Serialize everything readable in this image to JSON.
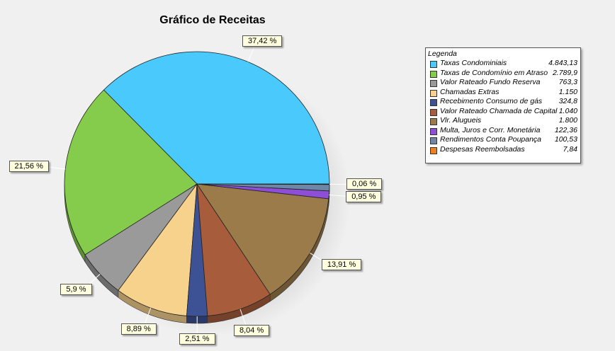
{
  "chart_data": {
    "type": "pie",
    "title": "Gráfico de Receitas",
    "legend_title": "Legenda",
    "legend_position": "right",
    "slices": [
      {
        "label": "Taxas Condominiais",
        "value_label": "4.843,13",
        "value": 4843.13,
        "percent_label": "37,42 %",
        "color": "#4ac9fd"
      },
      {
        "label": "Taxas de Condomínio em Atraso",
        "value_label": "2.789,9",
        "value": 2789.9,
        "percent_label": "21,56 %",
        "color": "#86cc4c"
      },
      {
        "label": "Valor Rateado Fundo Reserva",
        "value_label": "763,3",
        "value": 763.3,
        "percent_label": "5,9 %",
        "color": "#9a9a9a"
      },
      {
        "label": "Chamadas Extras",
        "value_label": "1.150",
        "value": 1150,
        "percent_label": "8,89 %",
        "color": "#f7d28d"
      },
      {
        "label": "Recebimento Consumo de gás",
        "value_label": "324,8",
        "value": 324.8,
        "percent_label": "2,51 %",
        "color": "#3c5294"
      },
      {
        "label": "Valor Rateado Chamada de Capital",
        "value_label": "1.040",
        "value": 1040,
        "percent_label": "8,04 %",
        "color": "#a75d3c"
      },
      {
        "label": "Vlr. Alugueis",
        "value_label": "1.800",
        "value": 1800,
        "percent_label": "13,91 %",
        "color": "#9b7b49"
      },
      {
        "label": "Multa, Juros e Corr. Monetária",
        "value_label": "122,36",
        "value": 122.36,
        "percent_label": "0,95 %",
        "color": "#8e4fd6"
      },
      {
        "label": "Rendimentos Conta Poupança",
        "value_label": "100,53",
        "value": 100.53,
        "percent_label": "",
        "color": "#6f87a6"
      },
      {
        "label": "Despesas Reembolsadas",
        "value_label": "7,84",
        "value": 7.84,
        "percent_label": "0,06 %",
        "color": "#f07f1d"
      }
    ]
  }
}
